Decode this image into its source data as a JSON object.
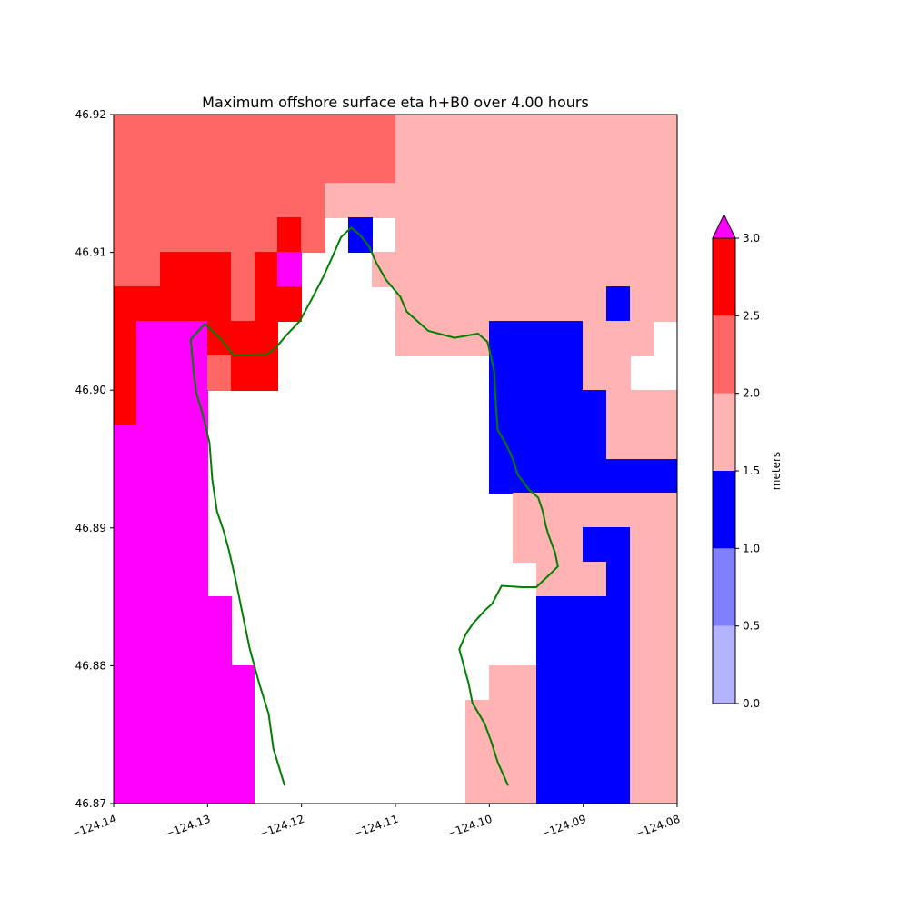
{
  "chart_data": {
    "type": "heatmap",
    "title": "Maximum offshore surface eta h+B0 over 4.00 hours",
    "x_range": [
      -124.14,
      -124.08
    ],
    "y_range": [
      46.87,
      46.92
    ],
    "x_ticks": [
      -124.14,
      -124.13,
      -124.12,
      -124.11,
      -124.1,
      -124.09,
      -124.08
    ],
    "x_tick_labels": [
      "−124.14",
      "−124.13",
      "−124.12",
      "−124.11",
      "−124.10",
      "−124.09",
      "−124.08"
    ],
    "y_ticks": [
      46.87,
      46.88,
      46.89,
      46.9,
      46.91,
      46.92
    ],
    "y_tick_labels": [
      "46.87",
      "46.88",
      "46.89",
      "46.90",
      "46.91",
      "46.92"
    ],
    "grid_x0": -124.14,
    "grid_y0": 46.87,
    "cell": 0.0025,
    "grid_cols": 24,
    "grid_rows": 20,
    "grid_row_order": "top-to-bottom",
    "grid_legend": {
      ".": "no data (land)",
      "a": "0.0-0.5",
      "b": "0.5-1.0",
      "c": "1.0-1.5",
      "d": "1.5-2.0",
      "e": "2.0-2.5",
      "f": "2.5-3.0",
      "m": ">3.0"
    },
    "grid": [
      "eeeeeeeeeeeedddddddddddd",
      "eeeeeeeeeeeedddddddddddd",
      "eeeeeeeeeddddddddddddddd",
      "eeeeeeefe.c.dddddddddddd",
      "eefffefm...ddddddddddddd",
      "fffffeff....dddddddddcdd",
      "fmmmfff.....ddddccccddd.",
      "fmmmeff.........ccccdd..",
      "fmmm............cccccddd",
      "mmmm............cccccddd",
      "mmmm............cccccccc",
      "mmmm.............ddddddd",
      "mmmm.............dddccdd",
      "mmmm..............dddcdd",
      "mmmmm.............ccccdd",
      "mmmmm.............ccccdd",
      "mmmmmm..........ddccccdd",
      "mmmmmm.........dddccccdd",
      "mmmmmm.........dddccccdd",
      "mmmmmm.........dddccccdd"
    ],
    "colorbar": {
      "label": "meters",
      "bounds": [
        0.0,
        0.5,
        1.0,
        1.5,
        2.0,
        2.5,
        3.0
      ],
      "tick_labels": [
        "0.0",
        "0.5",
        "1.0",
        "1.5",
        "2.0",
        "2.5",
        "3.0"
      ],
      "colors": [
        "#b3b3ff",
        "#8080ff",
        "#0000ff",
        "#ffb3b3",
        "#ff6666",
        "#ff0000"
      ],
      "extend_color": "#ff00ff",
      "extend": "max"
    },
    "shoreline": {
      "color": "#008000",
      "points": [
        [
          -124.1218,
          46.8713
        ],
        [
          -124.123,
          46.874
        ],
        [
          -124.1235,
          46.8765
        ],
        [
          -124.1245,
          46.8787
        ],
        [
          -124.1255,
          46.8812
        ],
        [
          -124.1262,
          46.8835
        ],
        [
          -124.127,
          46.8862
        ],
        [
          -124.1277,
          46.8883
        ],
        [
          -124.1283,
          46.8898
        ],
        [
          -124.129,
          46.8912
        ],
        [
          -124.1295,
          46.8935
        ],
        [
          -124.1298,
          46.8962
        ],
        [
          -124.1305,
          46.8982
        ],
        [
          -124.1312,
          46.8998
        ],
        [
          -124.1315,
          46.9015
        ],
        [
          -124.1318,
          46.9037
        ],
        [
          -124.1303,
          46.9048
        ],
        [
          -124.1287,
          46.9038
        ],
        [
          -124.1272,
          46.9025
        ],
        [
          -124.1252,
          46.9026
        ],
        [
          -124.1237,
          46.9026
        ],
        [
          -124.1227,
          46.9031
        ],
        [
          -124.1216,
          46.904
        ],
        [
          -124.1202,
          46.905
        ],
        [
          -124.119,
          46.9065
        ],
        [
          -124.1177,
          46.9082
        ],
        [
          -124.1167,
          46.9097
        ],
        [
          -124.1158,
          46.9111
        ],
        [
          -124.1147,
          46.9118
        ],
        [
          -124.1137,
          46.9112
        ],
        [
          -124.1128,
          46.9104
        ],
        [
          -124.112,
          46.9092
        ],
        [
          -124.111,
          46.908
        ],
        [
          -124.1095,
          46.9068
        ],
        [
          -124.1088,
          46.9057
        ],
        [
          -124.1065,
          46.9043
        ],
        [
          -124.1037,
          46.9038
        ],
        [
          -124.1012,
          46.9041
        ],
        [
          -124.1002,
          46.9035
        ],
        [
          -124.0995,
          46.9015
        ],
        [
          -124.0993,
          46.8989
        ],
        [
          -124.0991,
          46.8971
        ],
        [
          -124.0983,
          46.8962
        ],
        [
          -124.0975,
          46.895
        ],
        [
          -124.097,
          46.8939
        ],
        [
          -124.0958,
          46.8928
        ],
        [
          -124.0948,
          46.8922
        ],
        [
          -124.0943,
          46.8912
        ],
        [
          -124.094,
          46.8902
        ],
        [
          -124.0937,
          46.8895
        ],
        [
          -124.093,
          46.8882
        ],
        [
          -124.0927,
          46.8872
        ],
        [
          -124.0933,
          46.8868
        ],
        [
          -124.095,
          46.8857
        ],
        [
          -124.0965,
          46.8857
        ],
        [
          -124.0987,
          46.8858
        ],
        [
          -124.0997,
          46.8845
        ],
        [
          -124.1005,
          46.884
        ],
        [
          -124.1017,
          46.8831
        ],
        [
          -124.1025,
          46.8823
        ],
        [
          -124.1032,
          46.8812
        ],
        [
          -124.1022,
          46.8787
        ],
        [
          -124.1018,
          46.8773
        ],
        [
          -124.1005,
          46.8758
        ],
        [
          -124.0998,
          46.8745
        ],
        [
          -124.0991,
          46.873
        ],
        [
          -124.098,
          46.8713
        ]
      ]
    }
  }
}
